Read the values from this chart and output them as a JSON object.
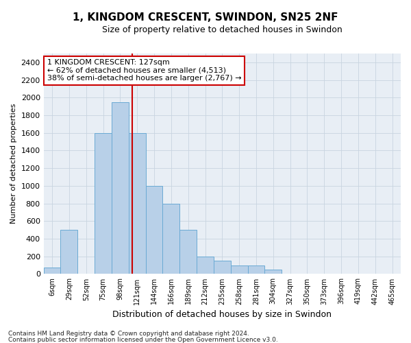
{
  "title": "1, KINGDOM CRESCENT, SWINDON, SN25 2NF",
  "subtitle": "Size of property relative to detached houses in Swindon",
  "xlabel": "Distribution of detached houses by size in Swindon",
  "ylabel": "Number of detached properties",
  "footer_line1": "Contains HM Land Registry data © Crown copyright and database right 2024.",
  "footer_line2": "Contains public sector information licensed under the Open Government Licence v3.0.",
  "bar_color": "#b8d0e8",
  "bar_edge_color": "#6aaad4",
  "grid_color": "#c8d4e0",
  "annotation_box_color": "#cc0000",
  "vline_color": "#cc0000",
  "categories": [
    "6sqm",
    "29sqm",
    "52sqm",
    "75sqm",
    "98sqm",
    "121sqm",
    "144sqm",
    "166sqm",
    "189sqm",
    "212sqm",
    "235sqm",
    "258sqm",
    "281sqm",
    "304sqm",
    "327sqm",
    "350sqm",
    "373sqm",
    "396sqm",
    "419sqm",
    "442sqm",
    "465sqm"
  ],
  "values": [
    75,
    500,
    0,
    1600,
    1950,
    1600,
    1000,
    800,
    500,
    200,
    150,
    100,
    100,
    50,
    0,
    0,
    0,
    0,
    0,
    0,
    0
  ],
  "annotation_line1": "1 KINGDOM CRESCENT: 127sqm",
  "annotation_line2": "← 62% of detached houses are smaller (4,513)",
  "annotation_line3": "38% of semi-detached houses are larger (2,767) →",
  "vline_x_idx": 4.7,
  "ylim": [
    0,
    2500
  ],
  "yticks": [
    0,
    200,
    400,
    600,
    800,
    1000,
    1200,
    1400,
    1600,
    1800,
    2000,
    2200,
    2400
  ],
  "bg_color": "#e8eef5",
  "title_fontsize": 11,
  "subtitle_fontsize": 9,
  "ylabel_fontsize": 8,
  "xlabel_fontsize": 9,
  "tick_fontsize": 8,
  "xtick_fontsize": 7,
  "footer_fontsize": 6.5,
  "ann_fontsize": 8
}
